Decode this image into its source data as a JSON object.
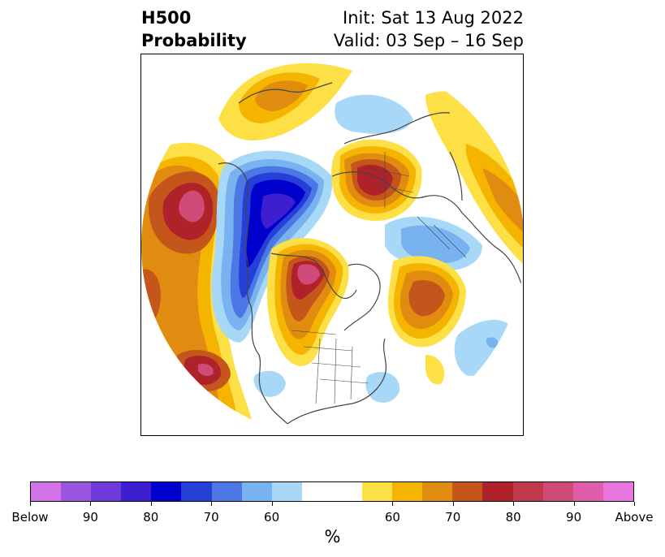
{
  "title": {
    "left_line1": "H500",
    "left_line2": "Probability",
    "right_line1": "Init: Sat 13 Aug 2022",
    "right_line2": "Valid: 03 Sep – 16 Sep"
  },
  "colorbar": {
    "label": "%",
    "colors": [
      "#d274e8",
      "#9a56e0",
      "#6e3bd8",
      "#3d1fd0",
      "#0000cc",
      "#2440d8",
      "#4c77e4",
      "#78b2f0",
      "#a8d8f8",
      "#ffffff",
      "#ffffff",
      "#fddf46",
      "#f4b400",
      "#e08c10",
      "#c4561c",
      "#b0222a",
      "#c0384c",
      "#d04a78",
      "#de5eaa",
      "#e874de"
    ],
    "tick_labels": [
      "Below",
      "90",
      "80",
      "70",
      "60",
      "60",
      "70",
      "80",
      "90",
      "Above"
    ]
  },
  "map": {
    "projection": "north-polar-stereographic",
    "palette": {
      "below_strong": "#3d1fd0",
      "below_core": "#0000cc",
      "below_mid": "#4c77e4",
      "below_weak": "#a8d8f8",
      "above_weak": "#fddf46",
      "above_mid": "#e08c10",
      "above_strong": "#b0222a",
      "above_core": "#d04a78"
    }
  }
}
